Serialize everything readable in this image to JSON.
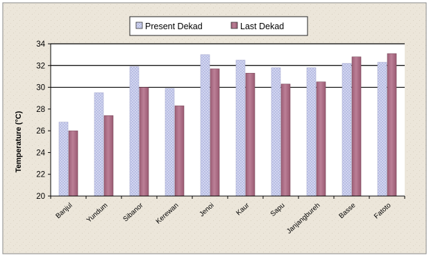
{
  "chart_data": {
    "type": "bar",
    "title": "",
    "xlabel": "",
    "ylabel": "Temperature (°C)",
    "ylim": [
      20,
      34
    ],
    "yticks": [
      20,
      22,
      24,
      26,
      28,
      30,
      32,
      34
    ],
    "grid_lines": [
      30,
      32,
      34
    ],
    "legend_position": "top-center",
    "categories": [
      "Banjul",
      "Yundum",
      "Sibanor",
      "Kerewan",
      "Jenoi",
      "Kaur",
      "Sapu",
      "Janjangbureh",
      "Basse",
      "Fatoto"
    ],
    "series": [
      {
        "name": "Present Dekad",
        "color": "#c8ccec",
        "values": [
          26.8,
          29.5,
          31.9,
          29.9,
          33.0,
          32.5,
          31.8,
          31.8,
          32.2,
          32.3
        ]
      },
      {
        "name": "Last Dekad",
        "color": "#b07088",
        "values": [
          26.0,
          27.4,
          30.0,
          28.3,
          31.7,
          31.3,
          30.3,
          30.5,
          32.8,
          33.1
        ]
      }
    ],
    "colors": {
      "background": "#ece6da",
      "plot_background": "#ffffff",
      "gridline": "#000000"
    }
  }
}
